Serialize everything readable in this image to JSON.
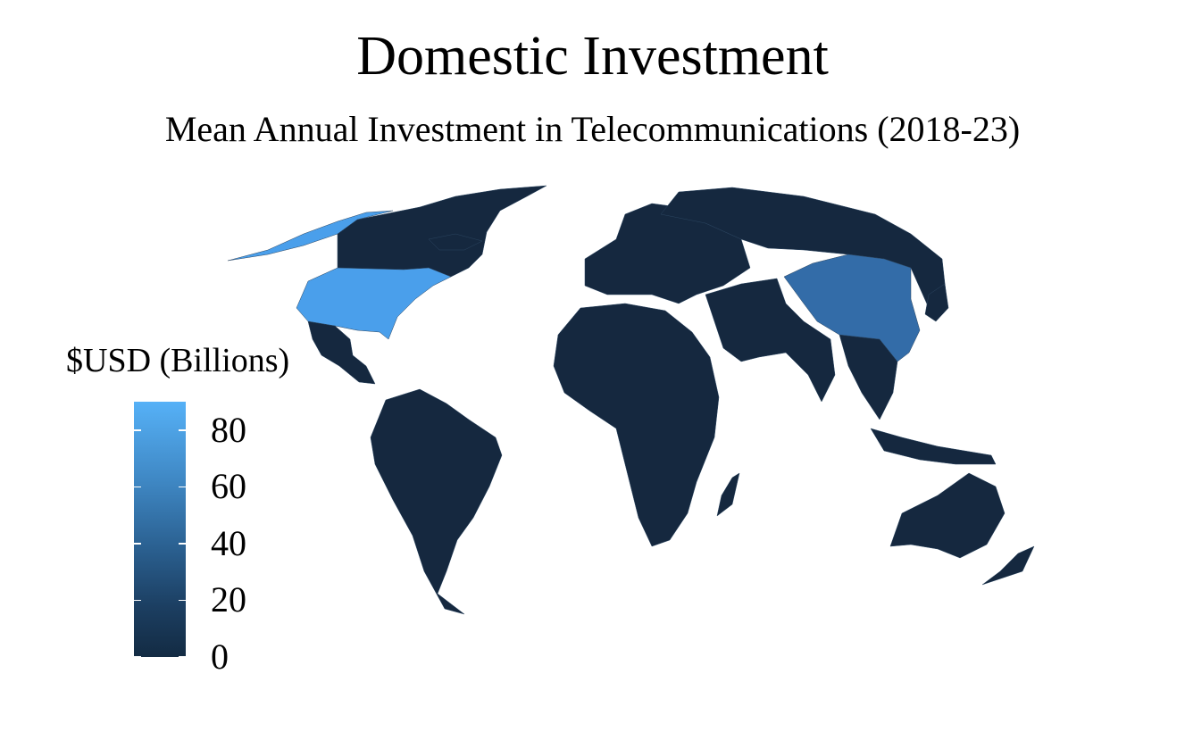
{
  "title": "Domestic Investment",
  "subtitle": "Mean Annual Investment in Telecommunications (2018-23)",
  "legend": {
    "title": "$USD (Billions)",
    "scale_min": 0,
    "scale_max": 90,
    "low_color": "#132B43",
    "high_color": "#56B1F7",
    "ticks": [
      {
        "value": 0,
        "label": "0"
      },
      {
        "value": 20,
        "label": "20"
      },
      {
        "value": 40,
        "label": "40"
      },
      {
        "value": 60,
        "label": "60"
      },
      {
        "value": 80,
        "label": "80"
      }
    ]
  },
  "map": {
    "projection": "world",
    "highlighted": [
      {
        "name": "United States",
        "value": 90,
        "color": "#4A9FEB"
      },
      {
        "name": "China",
        "value": 65,
        "color": "#336CA8"
      }
    ],
    "default_value": 5,
    "default_color": "#15283F",
    "land_colors": {
      "near_zero": "#132B43",
      "low": "#1B3553"
    }
  }
}
